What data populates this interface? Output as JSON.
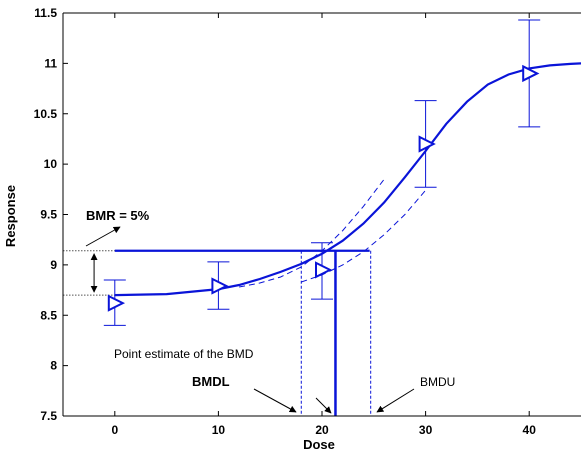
{
  "chart_data": {
    "type": "scatter",
    "title": "",
    "xlabel": "Dose",
    "ylabel": "Response",
    "xlim": [
      -5,
      45
    ],
    "ylim": [
      7.5,
      11.5
    ],
    "x_ticks": [
      0,
      10,
      20,
      30,
      40
    ],
    "y_ticks": [
      7.5,
      8,
      8.5,
      9,
      9.5,
      10,
      10.5,
      11,
      11.5
    ],
    "grid": false,
    "series": [
      {
        "marker": "triangle-right",
        "x": [
          0,
          10,
          20,
          30,
          40
        ],
        "y": [
          8.62,
          8.79,
          8.95,
          10.2,
          10.9
        ],
        "error_low": [
          8.4,
          8.56,
          8.66,
          9.77,
          10.37
        ],
        "error_high": [
          8.85,
          9.03,
          9.22,
          10.63,
          11.43
        ]
      }
    ],
    "fitted_curve": {
      "style": "solid",
      "x": [
        0,
        5,
        10,
        12,
        14,
        16,
        18,
        20,
        22,
        24,
        26,
        28,
        30,
        32,
        34,
        36,
        38,
        40,
        42,
        44,
        45
      ],
      "y": [
        8.7,
        8.71,
        8.76,
        8.8,
        8.86,
        8.93,
        9.01,
        9.11,
        9.24,
        9.41,
        9.62,
        9.87,
        10.13,
        10.4,
        10.62,
        10.79,
        10.89,
        10.95,
        10.98,
        10.995,
        11.0
      ]
    },
    "confidence_band": {
      "style": "dashed",
      "upper": {
        "x": [
          12,
          14,
          16,
          18,
          20,
          22,
          24,
          26
        ],
        "y": [
          8.78,
          8.82,
          8.88,
          8.98,
          9.14,
          9.34,
          9.58,
          9.85
        ]
      },
      "lower": {
        "x": [
          18,
          20,
          22,
          24,
          26,
          28,
          30
        ],
        "y": [
          8.83,
          8.9,
          9.0,
          9.13,
          9.3,
          9.5,
          9.74
        ]
      }
    },
    "bmr_line": {
      "y": 9.14,
      "x_end": 24.6
    },
    "background_line": {
      "y": 8.7
    },
    "bmd": 21.3,
    "bmdl": 18.0,
    "bmdu": 24.7,
    "annotations": {
      "bmr": "BMR = 5%",
      "point_estimate": "Point estimate of the BMD",
      "bmdl": "BMDL",
      "bmdu": "BMDU"
    },
    "colors": {
      "series": "#0a14d8",
      "axis": "#000000",
      "reference": "#555555"
    }
  }
}
